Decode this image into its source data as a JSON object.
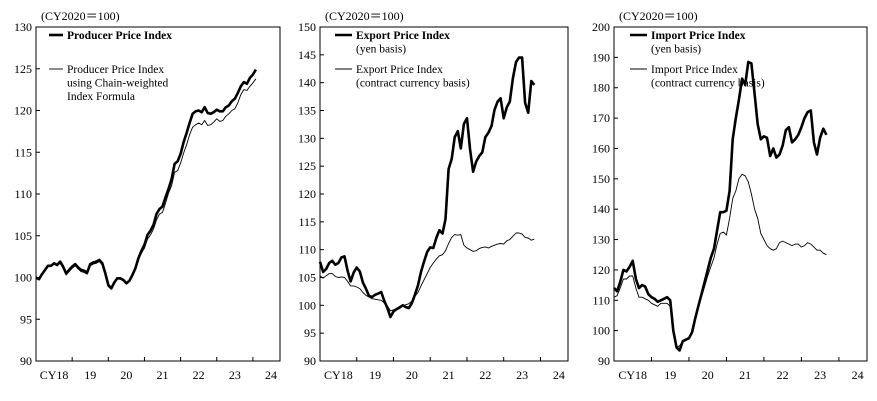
{
  "colors": {
    "line": "#000000",
    "background": "#ffffff"
  },
  "chart_data": [
    {
      "type": "line",
      "unit_label": "(CY2020＝100)",
      "ylim": [
        90,
        130
      ],
      "y_ticks": [
        "90",
        "95",
        "100",
        "105",
        "110",
        "115",
        "120",
        "125",
        "130"
      ],
      "x_range": [
        0,
        81
      ],
      "x_ticks": [
        {
          "x": 6,
          "label": "CY18"
        },
        {
          "x": 18,
          "label": "19"
        },
        {
          "x": 30,
          "label": "20"
        },
        {
          "x": 42,
          "label": "21"
        },
        {
          "x": 54,
          "label": "22"
        },
        {
          "x": 66,
          "label": "23"
        },
        {
          "x": 78,
          "label": "24"
        }
      ],
      "series": [
        {
          "name": "Producer Price Index",
          "legend_lines": [
            "Producer Price Index"
          ],
          "style": "thick",
          "values": [
            100.0,
            99.8,
            100.4,
            100.9,
            101.4,
            101.4,
            101.7,
            101.5,
            101.9,
            101.3,
            100.5,
            100.9,
            101.3,
            101.6,
            101.2,
            100.9,
            100.8,
            100.6,
            101.6,
            101.8,
            101.9,
            102.1,
            101.7,
            100.5,
            99.1,
            98.7,
            99.4,
            99.9,
            99.9,
            99.7,
            99.3,
            99.6,
            100.3,
            101.1,
            102.3,
            103.2,
            103.9,
            105.1,
            105.6,
            106.3,
            107.6,
            108.2,
            108.5,
            109.6,
            110.6,
            111.8,
            113.6,
            113.9,
            114.8,
            116.2,
            117.3,
            118.5,
            119.6,
            119.9,
            120.0,
            119.8,
            120.4,
            119.7,
            119.6,
            119.8,
            120.1,
            119.9,
            119.9,
            120.4,
            120.6,
            121.1,
            121.4,
            122.1,
            122.9,
            123.4,
            123.2,
            123.9,
            124.3,
            124.9
          ]
        },
        {
          "name": "Producer Price Index using Chain-weighted Index Formula",
          "legend_lines": [
            "Producer Price Index",
            "using Chain-weighted",
            "Index Formula"
          ],
          "style": "thin",
          "values": [
            100.0,
            99.8,
            100.4,
            100.9,
            101.4,
            101.4,
            101.6,
            101.4,
            101.7,
            101.1,
            100.3,
            100.7,
            101.1,
            101.4,
            101.0,
            100.7,
            100.6,
            100.4,
            101.4,
            101.6,
            101.7,
            101.9,
            101.5,
            100.3,
            98.9,
            98.6,
            99.3,
            99.8,
            99.8,
            99.6,
            99.2,
            99.6,
            100.2,
            101.0,
            102.1,
            102.9,
            103.5,
            104.6,
            105.1,
            105.8,
            106.9,
            107.6,
            107.8,
            108.9,
            110.1,
            111.0,
            112.6,
            112.8,
            113.7,
            114.9,
            115.9,
            117.1,
            118.0,
            118.3,
            118.5,
            118.3,
            118.8,
            118.2,
            118.3,
            118.6,
            119.0,
            118.7,
            118.8,
            119.3,
            119.6,
            120.0,
            120.2,
            120.9,
            121.9,
            122.5,
            122.4,
            122.9,
            123.3,
            123.8
          ]
        }
      ]
    },
    {
      "type": "line",
      "unit_label": "(CY2020＝100)",
      "ylim": [
        90,
        150
      ],
      "y_ticks": [
        "90",
        "95",
        "100",
        "105",
        "110",
        "115",
        "120",
        "125",
        "130",
        "135",
        "140",
        "145",
        "150"
      ],
      "x_range": [
        0,
        81
      ],
      "x_ticks": [
        {
          "x": 6,
          "label": "CY18"
        },
        {
          "x": 18,
          "label": "19"
        },
        {
          "x": 30,
          "label": "20"
        },
        {
          "x": 42,
          "label": "21"
        },
        {
          "x": 54,
          "label": "22"
        },
        {
          "x": 66,
          "label": "23"
        },
        {
          "x": 78,
          "label": "24"
        }
      ],
      "series": [
        {
          "name": "Export Price Index (yen basis)",
          "legend_lines": [
            "Export Price Index",
            "(yen basis)"
          ],
          "style": "thick",
          "values": [
            107.8,
            106.0,
            106.5,
            107.6,
            108.0,
            107.3,
            107.6,
            108.6,
            108.8,
            106.2,
            104.3,
            105.9,
            106.8,
            106.1,
            104.1,
            103.0,
            101.7,
            101.5,
            101.9,
            102.1,
            102.4,
            100.8,
            99.5,
            97.9,
            98.9,
            99.3,
            99.6,
            100.0,
            99.7,
            99.5,
            100.4,
            101.9,
            103.6,
            106.0,
            107.9,
            109.6,
            110.4,
            110.3,
            112.1,
            113.5,
            112.9,
            115.5,
            124.5,
            126.3,
            130.2,
            131.3,
            128.2,
            132.6,
            133.6,
            128.1,
            124.0,
            125.8,
            126.8,
            127.5,
            130.2,
            131.0,
            132.2,
            135.1,
            136.6,
            137.2,
            133.6,
            135.6,
            136.6,
            140.8,
            143.7,
            144.5,
            144.5,
            136.4,
            134.6,
            140.3,
            139.6
          ]
        },
        {
          "name": "Export Price Index (contract currency basis)",
          "legend_lines": [
            "Export Price Index",
            "(contract currency basis)"
          ],
          "style": "thin",
          "values": [
            105.3,
            104.9,
            105.3,
            105.7,
            105.7,
            105.2,
            105.0,
            105.1,
            105.0,
            104.3,
            103.5,
            103.5,
            103.3,
            103.0,
            102.3,
            101.8,
            101.5,
            101.2,
            101.1,
            101.0,
            100.9,
            100.4,
            99.9,
            99.0,
            99.2,
            99.4,
            99.8,
            100.0,
            100.1,
            100.3,
            100.8,
            101.6,
            102.3,
            103.5,
            104.6,
            105.7,
            106.8,
            107.6,
            108.3,
            108.9,
            109.1,
            109.8,
            111.1,
            112.2,
            112.7,
            112.6,
            112.7,
            110.8,
            110.3,
            110.0,
            109.7,
            109.8,
            110.2,
            110.4,
            110.5,
            110.3,
            110.6,
            110.8,
            111.0,
            111.1,
            111.0,
            111.6,
            111.8,
            112.4,
            113.0,
            113.0,
            112.8,
            112.2,
            112.1,
            111.7,
            111.9
          ]
        }
      ]
    },
    {
      "type": "line",
      "unit_label": "(CY2020＝100)",
      "ylim": [
        90,
        200
      ],
      "y_ticks": [
        "90",
        "100",
        "110",
        "120",
        "130",
        "140",
        "150",
        "160",
        "170",
        "180",
        "190",
        "200"
      ],
      "x_range": [
        0,
        81
      ],
      "x_ticks": [
        {
          "x": 6,
          "label": "CY18"
        },
        {
          "x": 18,
          "label": "19"
        },
        {
          "x": 30,
          "label": "20"
        },
        {
          "x": 42,
          "label": "21"
        },
        {
          "x": 54,
          "label": "22"
        },
        {
          "x": 66,
          "label": "23"
        },
        {
          "x": 78,
          "label": "24"
        }
      ],
      "series": [
        {
          "name": "Import Price Index (yen basis)",
          "legend_lines": [
            "Import Price Index",
            "(yen basis)"
          ],
          "style": "thick",
          "values": [
            114.0,
            113.0,
            116.0,
            120.0,
            119.5,
            121.0,
            123.0,
            117.0,
            114.0,
            115.0,
            114.5,
            112.0,
            111.0,
            110.5,
            109.5,
            110.0,
            110.5,
            111.0,
            110.0,
            100.0,
            94.5,
            93.5,
            96.5,
            97.0,
            97.5,
            99.5,
            104.0,
            108.0,
            112.0,
            116.0,
            120.0,
            124.0,
            127.0,
            133.0,
            139.0,
            139.0,
            139.5,
            146.0,
            163.0,
            170.0,
            176.0,
            183.0,
            181.0,
            188.5,
            188.0,
            178.0,
            168.0,
            163.0,
            164.0,
            163.5,
            157.5,
            160.0,
            157.0,
            158.0,
            161.0,
            166.0,
            167.0,
            162.0,
            163.0,
            164.5,
            167.0,
            170.0,
            172.0,
            172.5,
            162.0,
            158.0,
            163.5,
            166.5,
            164.5
          ]
        },
        {
          "name": "Import Price Index (contract currency basis)",
          "legend_lines": [
            "Import Price Index",
            "(contract currency basis)"
          ],
          "style": "thin",
          "values": [
            111.0,
            111.5,
            114.0,
            117.0,
            117.0,
            118.0,
            118.0,
            114.0,
            111.0,
            111.0,
            110.5,
            110.0,
            109.0,
            108.5,
            108.0,
            109.0,
            109.0,
            109.0,
            108.0,
            99.5,
            94.5,
            95.0,
            96.5,
            97.0,
            97.5,
            100.0,
            103.5,
            108.0,
            111.0,
            114.5,
            118.0,
            121.0,
            124.0,
            128.5,
            132.0,
            132.5,
            131.5,
            137.0,
            143.5,
            146.0,
            150.0,
            151.5,
            151.0,
            149.0,
            145.0,
            140.0,
            137.0,
            132.0,
            130.0,
            128.0,
            127.0,
            126.5,
            127.0,
            129.0,
            129.5,
            129.0,
            128.5,
            128.0,
            128.5,
            128.5,
            127.5,
            128.0,
            129.0,
            128.5,
            127.5,
            126.5,
            126.5,
            125.5,
            125.0
          ]
        }
      ]
    }
  ]
}
